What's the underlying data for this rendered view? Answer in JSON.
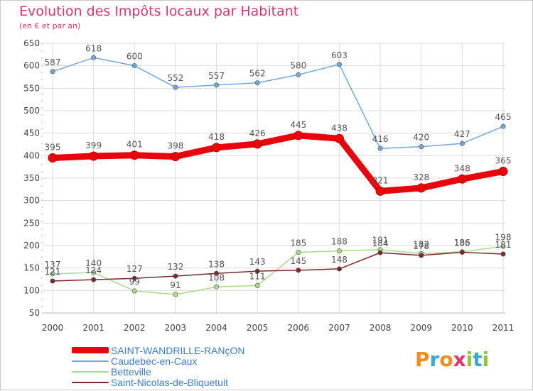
{
  "header": {
    "title": "Evolution des Impôts locaux par Habitant",
    "subtitle": "(en € et par an)"
  },
  "logo": {
    "text": "Proxiti",
    "letters": [
      {
        "ch": "P",
        "color": "#f28c1e"
      },
      {
        "ch": "r",
        "color": "#3aa7db"
      },
      {
        "ch": "o",
        "color": "#f28c1e"
      },
      {
        "ch": "x",
        "color": "#e6336f"
      },
      {
        "ch": "i",
        "color": "#8cc63f"
      },
      {
        "ch": "t",
        "color": "#3aa7db"
      },
      {
        "ch": "i",
        "color": "#8cc63f"
      }
    ]
  },
  "chart_data": {
    "type": "line",
    "title": "Evolution des Impôts locaux par Habitant",
    "subtitle": "(en € et par an)",
    "x": [
      "2000",
      "2001",
      "2002",
      "2003",
      "2004",
      "2005",
      "2006",
      "2007",
      "2008",
      "2009",
      "2010",
      "2011"
    ],
    "ylim": [
      50,
      650
    ],
    "yticks": [
      50,
      100,
      150,
      200,
      250,
      300,
      350,
      400,
      450,
      500,
      550,
      600,
      650
    ],
    "grid": true,
    "legend_position": "bottom-left",
    "series": [
      {
        "name": "SAINT-WANDRILLE-RANçON",
        "color": "#e8050b",
        "values": [
          395,
          399,
          401,
          398,
          418,
          426,
          445,
          438,
          321,
          328,
          348,
          365
        ],
        "labels": [
          "395",
          "399",
          "401",
          "398",
          "418",
          "426",
          "445",
          "438",
          "321",
          "328",
          "348",
          "365"
        ]
      },
      {
        "name": "Caudebec-en-Caux",
        "color": "#6fa8dc",
        "values": [
          587,
          618,
          600,
          552,
          557,
          562,
          580,
          603,
          416,
          420,
          427,
          465
        ],
        "labels": [
          "587",
          "618",
          "600",
          "552",
          "557",
          "562",
          "580",
          "603",
          "416",
          "420",
          "427",
          "465"
        ]
      },
      {
        "name": "Betteville",
        "color": "#a8dc8c",
        "values": [
          137,
          140,
          99,
          91,
          108,
          111,
          185,
          188,
          191,
          182,
          186,
          198
        ],
        "labels": [
          "137",
          "140",
          "99",
          "91",
          "108",
          "111",
          "185",
          "188",
          "191",
          "182",
          "186",
          "198"
        ]
      },
      {
        "name": "Saint-Nicolas-de-Bliquetuit",
        "color": "#7a2a2a",
        "values": [
          121,
          124,
          127,
          132,
          138,
          143,
          145,
          148,
          184,
          178,
          185,
          181
        ],
        "labels": [
          "121",
          "124",
          "127",
          "132",
          "138",
          "143",
          "145",
          "148",
          "184",
          "178",
          "185",
          "181"
        ]
      }
    ]
  }
}
